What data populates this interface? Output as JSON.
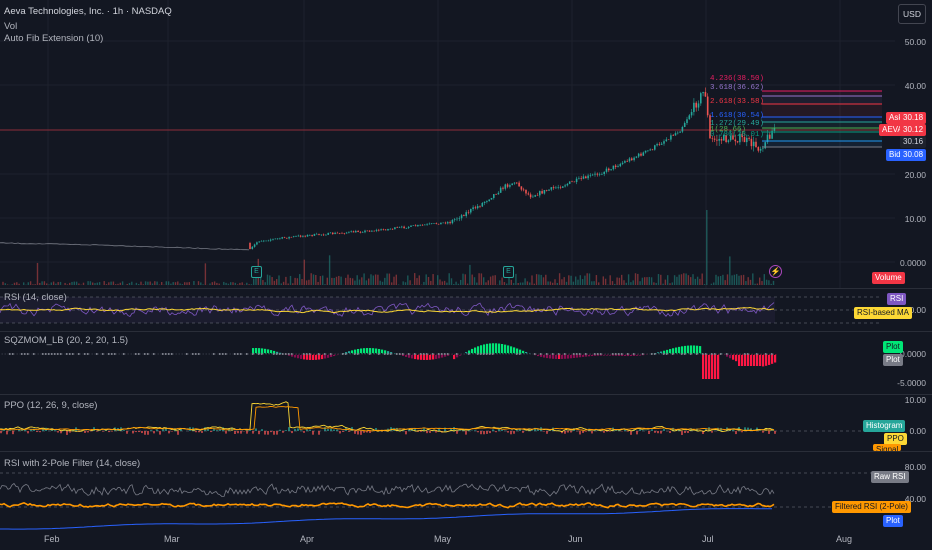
{
  "header": {
    "symbol_line": "Aeva Technologies, Inc. · 1h · NASDAQ",
    "vol_label": "Vol",
    "fib_label": "Auto Fib Extension (10)",
    "currency_button": "USD"
  },
  "price_axis": {
    "labels": [
      "50.00",
      "40.00",
      "30.00",
      "20.00",
      "10.00",
      "0.0000"
    ]
  },
  "fib_levels": [
    {
      "label": "4.236(38.50)",
      "color": "#e91e63"
    },
    {
      "label": "3.618(36.62)",
      "color": "#9575cd"
    },
    {
      "label": "2.618(33.58)",
      "color": "#f23645"
    },
    {
      "label": "1.618(30.54)",
      "color": "#2962ff"
    },
    {
      "label": "1.272(29.49)",
      "color": "#26a69a"
    },
    {
      "label": "1(28.66)",
      "color": "#4caf50"
    },
    {
      "label": "0.786(28.01)",
      "color": "#089981"
    },
    {
      "label": "0.618(27.50)",
      "color": "#2196f3"
    },
    {
      "label": "0.5(27.14)",
      "color": "#787b86"
    }
  ],
  "price_tags": {
    "ask_label": "Ask",
    "ask_value": "30.18",
    "symbol_label": "AEVA",
    "last_value": "30.12",
    "mid_value": "30.16",
    "bid_label": "Bid",
    "bid_value": "30.08",
    "volume_label": "Volume"
  },
  "rsi": {
    "title": "RSI (14, close)",
    "axis": "50.00",
    "tag_rsi": "RSI",
    "tag_ma": "RSI-based MA"
  },
  "sqz": {
    "title": "SQZMOM_LB (20, 2, 20, 1.5)",
    "axis_top": "0.0000",
    "axis_bottom": "-5.0000",
    "tag_plot": "Plot",
    "tag_top": "Plot"
  },
  "ppo": {
    "title": "PPO (12, 26, 9, close)",
    "axis_top": "10.00",
    "axis_mid": "0.00",
    "tag_hist": "Histogram",
    "tag_ppo": "PPO",
    "tag_signal": "Signal"
  },
  "rsi2": {
    "title": "RSI with 2-Pole Filter (14, close)",
    "axis_top": "80.00",
    "axis_mid": "40.00",
    "tag_raw": "Raw RSI",
    "tag_filtered": "Filtered RSI (2-Pole)",
    "tag_plot": "Plot"
  },
  "time_axis": [
    "Feb",
    "Mar",
    "Apr",
    "May",
    "Jun",
    "Jul",
    "Aug"
  ],
  "markers": {
    "earnings": "E",
    "flash": "⚡"
  },
  "colors": {
    "up": "#26a69a",
    "down": "#ef5350",
    "bg": "#131722"
  }
}
